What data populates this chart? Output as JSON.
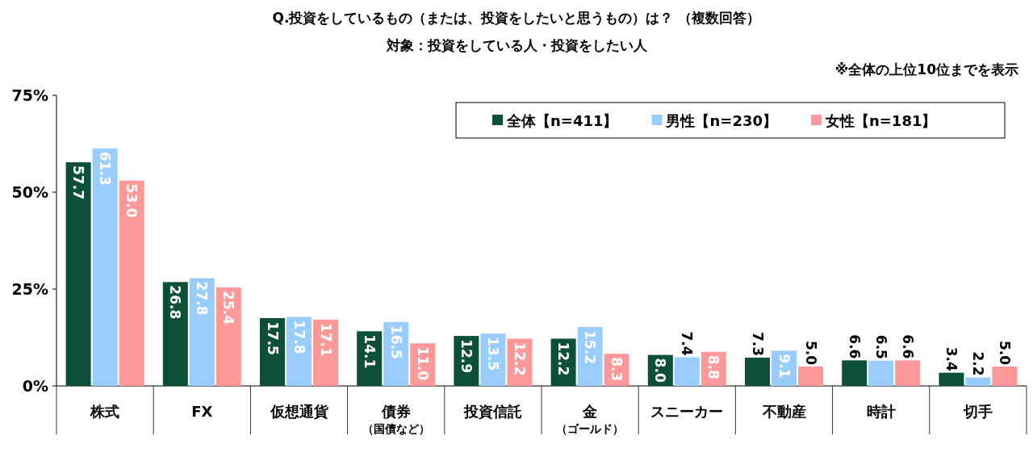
{
  "chart_data": {
    "type": "bar",
    "title": "Q.投資をしているもの（または、投資をしたいと思うもの）は？ （複数回答）",
    "subtitle": "対象：投資をしている人・投資をしたい人",
    "annotations": [
      "※全体の上位10位までを表示"
    ],
    "categories": [
      "株式",
      "FX",
      "仮想通貨",
      "債券（国債など）",
      "投資信託",
      "金（ゴールド）",
      "スニーカー",
      "不動産",
      "時計",
      "切手"
    ],
    "series": [
      {
        "name": "全体【n=411】",
        "color": "#0d5038",
        "values": [
          57.7,
          26.8,
          17.5,
          14.1,
          12.9,
          12.2,
          8.0,
          7.3,
          6.6,
          3.4
        ],
        "value_labels": [
          "57.7",
          "26.8",
          "17.5",
          "14.1",
          "12.9",
          "12.2",
          "8.0",
          "7.3",
          "6.6",
          "3.4"
        ]
      },
      {
        "name": "男性【n=230】",
        "color": "#99ccff",
        "values": [
          61.3,
          27.8,
          17.8,
          16.5,
          13.5,
          15.2,
          7.4,
          9.1,
          6.5,
          2.2
        ],
        "value_labels": [
          "61.3",
          "27.8",
          "17.8",
          "16.5",
          "13.5",
          "15.2",
          "7.4",
          "9.1",
          "6.5",
          "2.2"
        ]
      },
      {
        "name": "女性【n=181】",
        "color": "#ff9999",
        "values": [
          53.0,
          25.4,
          17.1,
          11.0,
          12.2,
          8.3,
          8.8,
          5.0,
          6.6,
          5.0
        ],
        "value_labels": [
          "53.0",
          "25.4",
          "17.1",
          "11.0",
          "12.2",
          "8.3",
          "8.8",
          "5.0",
          "6.6",
          "5.0"
        ]
      }
    ],
    "ylim": [
      0,
      75
    ],
    "yticks": [
      {
        "value": 0,
        "label": "0%"
      },
      {
        "value": 25,
        "label": "25%"
      },
      {
        "value": 50,
        "label": "50%"
      },
      {
        "value": 75,
        "label": "75%"
      }
    ],
    "legend": "top right",
    "grid": false
  }
}
